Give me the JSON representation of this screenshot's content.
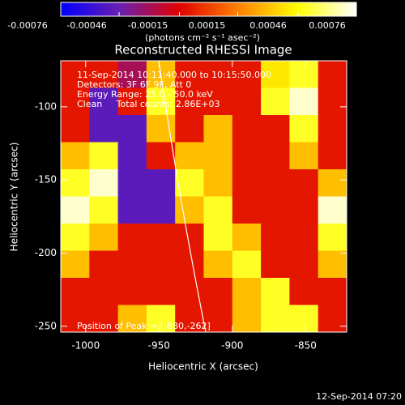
{
  "chart_data": {
    "type": "heatmap",
    "title": "Reconstructed RHESSI Image",
    "x_label": "Heliocentric X (arcsec)",
    "y_label": "Heliocentric Y (arcsec)",
    "colorbar_label": "(photons cm⁻² s⁻¹ asec⁻²)",
    "annotations": [
      "11-Sep-2014 10:11:40.000 to 10:15:50.000",
      "Detectors: 3F 6F 9F, Att 0",
      "Energy Range: 25.0 - 50.0 keV",
      "Clean     Total counts: 2.86E+03",
      "Position of Peak = [-880,-262]"
    ],
    "footer": "12-Sep-2014 07:20",
    "xlim": [
      -1017,
      -822
    ],
    "ylim": [
      -254,
      -68.5
    ],
    "xticks": [
      -1000,
      -950,
      -900,
      -850
    ],
    "yticks": [
      -100,
      -150,
      -200,
      -250
    ],
    "clim": [
      -0.00076,
      0.00076
    ],
    "cticks": [
      -0.00076,
      -0.00046,
      -0.00015,
      0.00015,
      0.00046,
      0.00076
    ],
    "colormap": [
      "#0000ff",
      "#6a1fb0",
      "#e00000",
      "#ff8000",
      "#ffff00",
      "#ffffff"
    ],
    "z": [
      [
        -0.0001,
        -0.0001,
        -0.0003,
        0.0003,
        -0.0001,
        -0.0001,
        -0.0001,
        0.0004,
        0.0005,
        -0.0001
      ],
      [
        -0.0001,
        -0.0005,
        -0.0001,
        0.0005,
        -0.0001,
        -0.0001,
        -0.0001,
        0.0005,
        0.0007,
        -0.0001
      ],
      [
        -0.0001,
        -0.0005,
        -0.0005,
        0.0003,
        -0.0001,
        0.0003,
        -0.0001,
        -0.0001,
        0.0005,
        -0.0001
      ],
      [
        0.0003,
        0.0005,
        -0.0005,
        -0.0001,
        0.0003,
        0.0003,
        -0.0001,
        -0.0001,
        0.0003,
        -0.0001
      ],
      [
        0.0005,
        0.0007,
        -0.0005,
        -0.0005,
        0.0005,
        0.0003,
        -0.0001,
        -0.0001,
        -0.0001,
        0.0003
      ],
      [
        0.0007,
        0.0005,
        -0.0005,
        -0.0005,
        0.0003,
        0.0005,
        -0.0001,
        -0.0001,
        -0.0001,
        0.0007
      ],
      [
        0.0005,
        0.0003,
        -0.0001,
        -0.0001,
        -0.0001,
        0.0005,
        0.0003,
        -0.0001,
        -0.0001,
        0.0005
      ],
      [
        0.0003,
        -0.0001,
        -0.0001,
        -0.0001,
        -0.0001,
        0.0003,
        0.0005,
        -0.0001,
        -0.0001,
        0.0003
      ],
      [
        -0.0001,
        -0.0001,
        -0.0001,
        -0.0001,
        -0.0001,
        -0.0001,
        0.0003,
        0.0005,
        -0.0001,
        -0.0001
      ],
      [
        -0.0001,
        -0.0001,
        0.0003,
        0.0005,
        -0.0001,
        -0.0001,
        0.0003,
        0.0005,
        0.0005,
        -0.0001
      ]
    ]
  }
}
